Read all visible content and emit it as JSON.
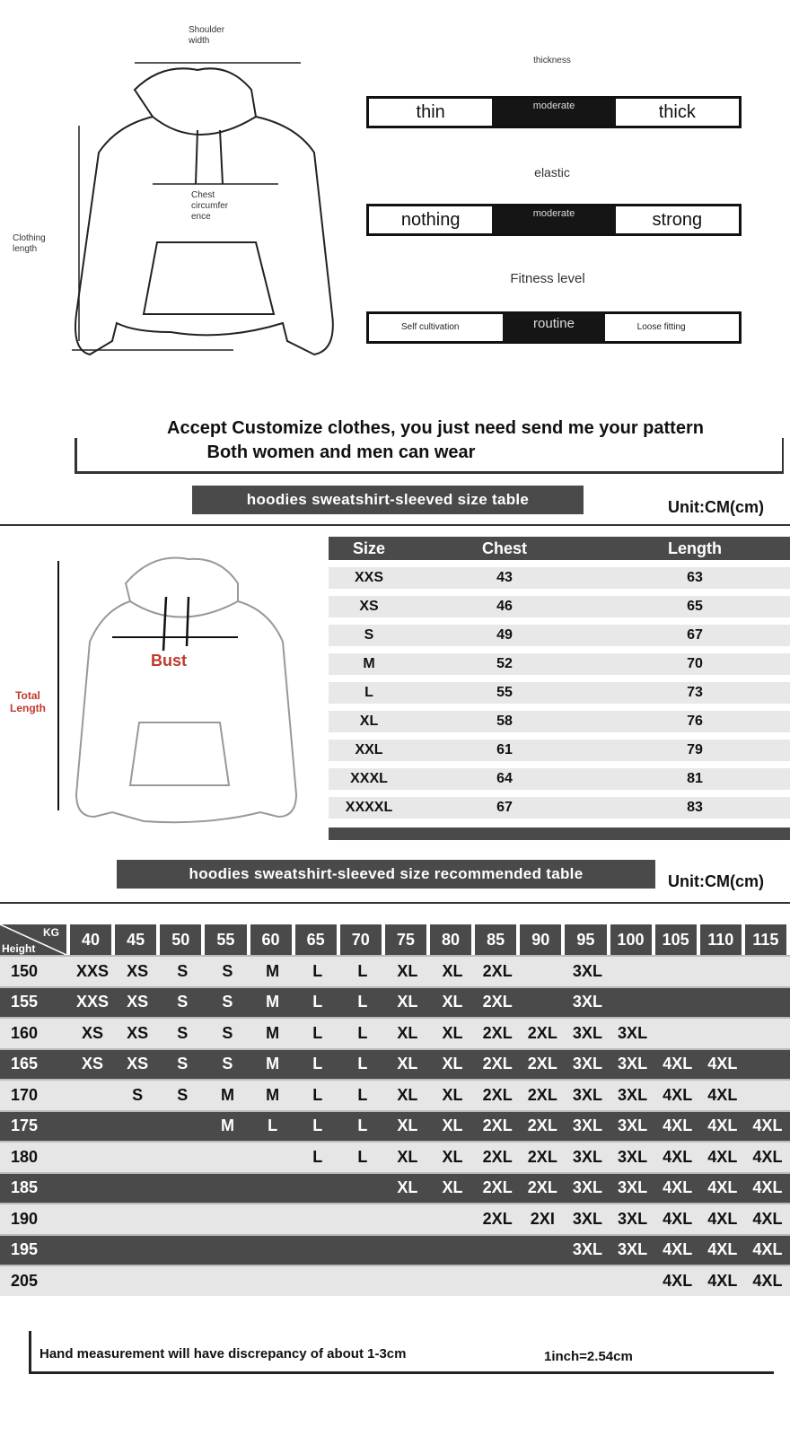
{
  "top_diagram": {
    "shoulder_width": "Shoulder width",
    "chest": "Chest circumfer ence",
    "clothing_length": "Clothing length"
  },
  "scales": [
    {
      "title": "thickness",
      "left": "thin",
      "middle": "moderate",
      "right": "thick",
      "selected": "moderate"
    },
    {
      "title": "elastic",
      "left": "nothing",
      "middle": "moderate",
      "right": "strong",
      "selected": "moderate"
    },
    {
      "title": "Fitness level",
      "left": "Self cultivation",
      "middle": "routine",
      "right": "Loose fitting",
      "selected": "routine"
    }
  ],
  "banner": {
    "line1": "Accept Customize clothes, you just need send me your pattern",
    "line2": "Both women and men can wear"
  },
  "size_table": {
    "title": "hoodies sweatshirt-sleeved size  table",
    "unit": "Unit:CM(cm)",
    "diagram_bust": "Bust",
    "diagram_length": "Total Length",
    "headers": [
      "Size",
      "Chest",
      "Length"
    ],
    "rows": [
      [
        "XXS",
        "43",
        "63"
      ],
      [
        "XS",
        "46",
        "65"
      ],
      [
        "S",
        "49",
        "67"
      ],
      [
        "M",
        "52",
        "70"
      ],
      [
        "L",
        "55",
        "73"
      ],
      [
        "XL",
        "58",
        "76"
      ],
      [
        "XXL",
        "61",
        "79"
      ],
      [
        "XXXL",
        "64",
        "81"
      ],
      [
        "XXXXL",
        "67",
        "83"
      ]
    ]
  },
  "recommended_table": {
    "title": "hoodies sweatshirt-sleeved size recommended table",
    "unit": "Unit:CM(cm)",
    "corner_kg": "KG",
    "corner_height": "Height",
    "kg": [
      "40",
      "45",
      "50",
      "55",
      "60",
      "65",
      "70",
      "75",
      "80",
      "85",
      "90",
      "95",
      "100",
      "105",
      "110",
      "115"
    ],
    "rows": [
      {
        "height": "150",
        "sizes": [
          "XXS",
          "XS",
          "S",
          "S",
          "M",
          "L",
          "L",
          "XL",
          "XL",
          "2XL",
          "",
          "3XL",
          "",
          "",
          "",
          ""
        ]
      },
      {
        "height": "155",
        "sizes": [
          "XXS",
          "XS",
          "S",
          "S",
          "M",
          "L",
          "L",
          "XL",
          "XL",
          "2XL",
          "",
          "3XL",
          "",
          "",
          "",
          ""
        ]
      },
      {
        "height": "160",
        "sizes": [
          "XS",
          "XS",
          "S",
          "S",
          "M",
          "L",
          "L",
          "XL",
          "XL",
          "2XL",
          "2XL",
          "3XL",
          "3XL",
          "",
          "",
          ""
        ]
      },
      {
        "height": "165",
        "sizes": [
          "XS",
          "XS",
          "S",
          "S",
          "M",
          "L",
          "L",
          "XL",
          "XL",
          "2XL",
          "2XL",
          "3XL",
          "3XL",
          "4XL",
          "4XL",
          ""
        ]
      },
      {
        "height": "170",
        "sizes": [
          "",
          "S",
          "S",
          "M",
          "M",
          "L",
          "L",
          "XL",
          "XL",
          "2XL",
          "2XL",
          "3XL",
          "3XL",
          "4XL",
          "4XL",
          ""
        ]
      },
      {
        "height": "175",
        "sizes": [
          "",
          "",
          "",
          "M",
          "L",
          "L",
          "L",
          "XL",
          "XL",
          "2XL",
          "2XL",
          "3XL",
          "3XL",
          "4XL",
          "4XL",
          "4XL"
        ]
      },
      {
        "height": "180",
        "sizes": [
          "",
          "",
          "",
          "",
          "",
          "L",
          "L",
          "XL",
          "XL",
          "2XL",
          "2XL",
          "3XL",
          "3XL",
          "4XL",
          "4XL",
          "4XL"
        ]
      },
      {
        "height": "185",
        "sizes": [
          "",
          "",
          "",
          "",
          "",
          "",
          "",
          "XL",
          "XL",
          "2XL",
          "2XL",
          "3XL",
          "3XL",
          "4XL",
          "4XL",
          "4XL"
        ]
      },
      {
        "height": "190",
        "sizes": [
          "",
          "",
          "",
          "",
          "",
          "",
          "",
          "",
          "",
          "2XL",
          "2XI",
          "3XL",
          "3XL",
          "4XL",
          "4XL",
          "4XL"
        ]
      },
      {
        "height": "195",
        "sizes": [
          "",
          "",
          "",
          "",
          "",
          "",
          "",
          "",
          "",
          "",
          "",
          "3XL",
          "3XL",
          "4XL",
          "4XL",
          "4XL"
        ]
      },
      {
        "height": "205",
        "sizes": [
          "",
          "",
          "",
          "",
          "",
          "",
          "",
          "",
          "",
          "",
          "",
          "",
          "",
          "4XL",
          "4XL",
          "4XL"
        ]
      }
    ]
  },
  "footer": {
    "note": "Hand measurement will have discrepancy of about  1-3cm",
    "conversion": "1inch=2.54cm"
  },
  "colors": {
    "dark_bar": "#4a4a4a",
    "light_row": "#e6e6e6",
    "accent_red": "#c0392b"
  }
}
